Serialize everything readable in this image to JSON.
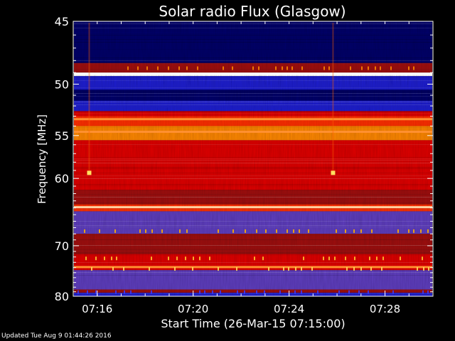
{
  "chart_data": {
    "type": "heatmap",
    "title": "Solar radio Flux (Glasgow)",
    "xlabel": "Start Time (26-Mar-15 07:15:00)",
    "ylabel": "Frequency [MHz]",
    "x_unit": "time (HH:MM)",
    "xlim": [
      "07:15",
      "07:30"
    ],
    "ylim": [
      45,
      80
    ],
    "y_inverted": true,
    "x_ticks": [
      "07:16",
      "07:20",
      "07:24",
      "07:28"
    ],
    "y_ticks": [
      45,
      50,
      55,
      60,
      70,
      80
    ],
    "colormap": [
      "#00002a",
      "#00006a",
      "#2020d0",
      "#6040c0",
      "#a01818",
      "#e01010",
      "#ff3000",
      "#ff8800",
      "#ffe060",
      "#ffffff"
    ],
    "frequency_bands_mhz": [
      {
        "from": 45.0,
        "to": 48.2,
        "level": 1
      },
      {
        "from": 48.2,
        "to": 49.0,
        "level": 4
      },
      {
        "from": 49.0,
        "to": 49.3,
        "level": 9
      },
      {
        "from": 49.3,
        "to": 50.5,
        "level": 2
      },
      {
        "from": 50.5,
        "to": 51.5,
        "level": 1
      },
      {
        "from": 51.5,
        "to": 52.5,
        "level": 2
      },
      {
        "from": 52.5,
        "to": 53.0,
        "level": 5
      },
      {
        "from": 53.0,
        "to": 54.0,
        "level": 6
      },
      {
        "from": 54.0,
        "to": 55.5,
        "level": 7
      },
      {
        "from": 55.5,
        "to": 61.5,
        "level": 5
      },
      {
        "from": 61.5,
        "to": 63.5,
        "level": 4
      },
      {
        "from": 63.5,
        "to": 64.5,
        "level": 6
      },
      {
        "from": 64.5,
        "to": 68.0,
        "level": 3
      },
      {
        "from": 68.0,
        "to": 71.5,
        "level": 4
      },
      {
        "from": 71.5,
        "to": 74.5,
        "level": 5
      },
      {
        "from": 74.5,
        "to": 78.5,
        "level": 3
      },
      {
        "from": 78.5,
        "to": 79.2,
        "level": 4
      },
      {
        "from": 79.2,
        "to": 80.0,
        "level": 2
      }
    ],
    "bright_lines_mhz": [
      49.1,
      53.3,
      54.6,
      63.9,
      73.9
    ],
    "bursts": [
      {
        "time": "07:15:40",
        "freq_mhz": 59.3
      },
      {
        "time": "07:25:50",
        "freq_mhz": 59.3
      }
    ]
  },
  "footer": {
    "updated": "Updated Tue Aug  9 01:44:26 2016"
  }
}
